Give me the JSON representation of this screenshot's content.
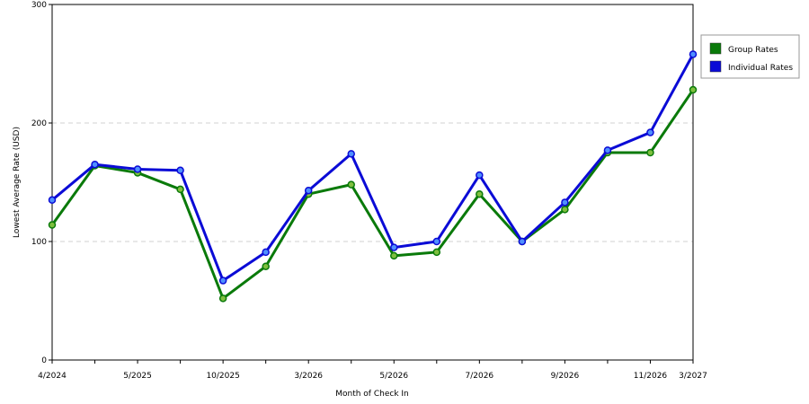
{
  "chart_data": {
    "type": "line",
    "xlabel": "Month of Check In",
    "ylabel": "Lowest Average Rate (USD)",
    "ylim": [
      0,
      300
    ],
    "yticks": [
      0,
      100,
      200,
      300
    ],
    "grid": "horizontal dashed",
    "legend_position": "right",
    "x_tick_labels": [
      {
        "index": 0,
        "label": "4/2024"
      },
      {
        "index": 2,
        "label": "5/2025"
      },
      {
        "index": 4,
        "label": "10/2025"
      },
      {
        "index": 6,
        "label": "3/2026"
      },
      {
        "index": 8,
        "label": "5/2026"
      },
      {
        "index": 10,
        "label": "7/2026"
      },
      {
        "index": 12,
        "label": "9/2026"
      },
      {
        "index": 14,
        "label": "11/2026"
      },
      {
        "index": 15,
        "label": "3/2027"
      }
    ],
    "point_count": 16,
    "series": [
      {
        "name": "Group Rates",
        "color": "#0a7a0a",
        "values": [
          114,
          164,
          158,
          144,
          52,
          79,
          140,
          148,
          88,
          91,
          140,
          100,
          127,
          175,
          175,
          228
        ]
      },
      {
        "name": "Individual Rates",
        "color": "#0b0bd6",
        "values": [
          135,
          165,
          161,
          160,
          67,
          91,
          143,
          174,
          95,
          100,
          156,
          100,
          133,
          177,
          192,
          258
        ]
      }
    ]
  }
}
